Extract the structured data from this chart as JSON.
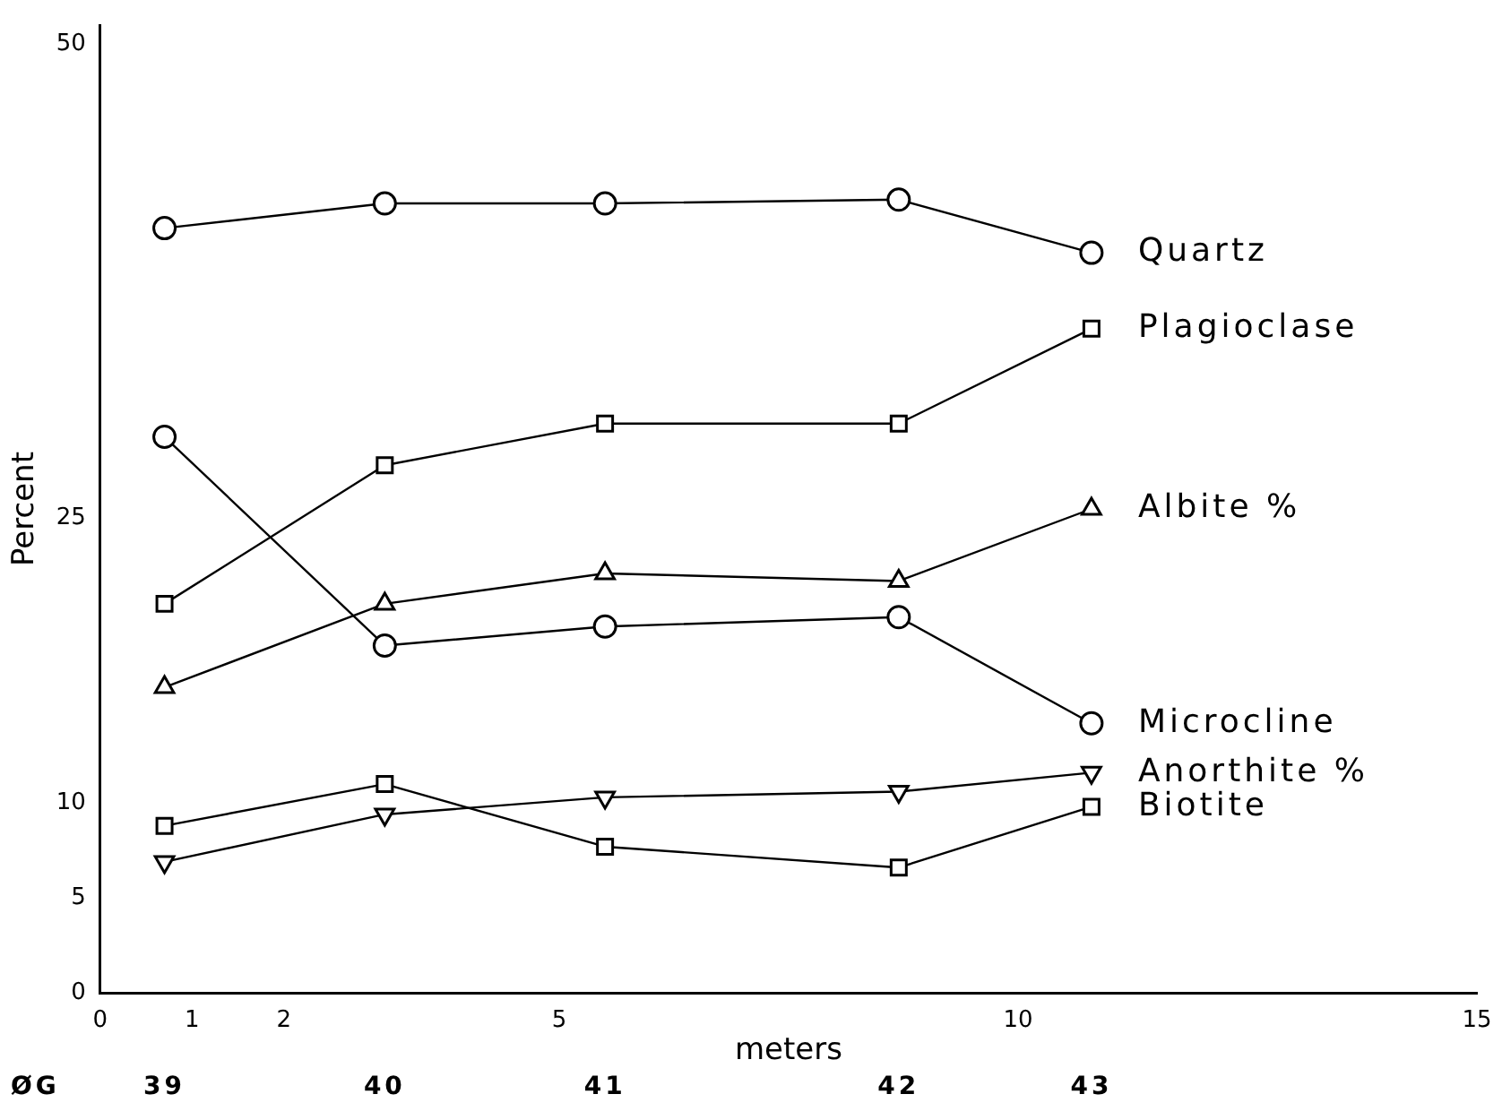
{
  "chart_data": {
    "type": "line",
    "ylabel": "Percent",
    "xlabel": "meters",
    "annotations": [
      "ØG",
      "39",
      "40",
      "41",
      "42",
      "43"
    ],
    "xlim": [
      0,
      15
    ],
    "xticks": [
      0,
      1,
      2,
      5,
      10,
      15
    ],
    "ylim": [
      0,
      51
    ],
    "yticks": [
      0,
      5,
      10,
      25,
      50
    ],
    "x": [
      0.7,
      3.1,
      5.5,
      8.7,
      10.8
    ],
    "grid": false,
    "legend": false,
    "series": [
      {
        "name": "Quartz",
        "color": "#000000",
        "marker": "circle",
        "values": [
          40.3,
          41.6,
          41.6,
          41.8,
          39.0
        ]
      },
      {
        "name": "Plagioclase",
        "color": "#000000",
        "marker": "square",
        "values": [
          20.5,
          27.8,
          30.0,
          30.0,
          35.0
        ]
      },
      {
        "name": "Albite %",
        "color": "#000000",
        "marker": "triangle",
        "values": [
          16.1,
          20.5,
          22.1,
          21.7,
          25.5
        ]
      },
      {
        "name": "Microcline",
        "color": "#000000",
        "marker": "circle",
        "values": [
          29.3,
          18.3,
          19.3,
          19.8,
          14.2
        ]
      },
      {
        "name": "Anorthite %",
        "color": "#000000",
        "marker": "triangle_down",
        "values": [
          6.9,
          9.4,
          10.3,
          10.6,
          11.6
        ]
      },
      {
        "name": "Biotite",
        "color": "#000000",
        "marker": "square",
        "values": [
          8.8,
          11.0,
          7.7,
          6.6,
          9.8
        ]
      }
    ]
  }
}
